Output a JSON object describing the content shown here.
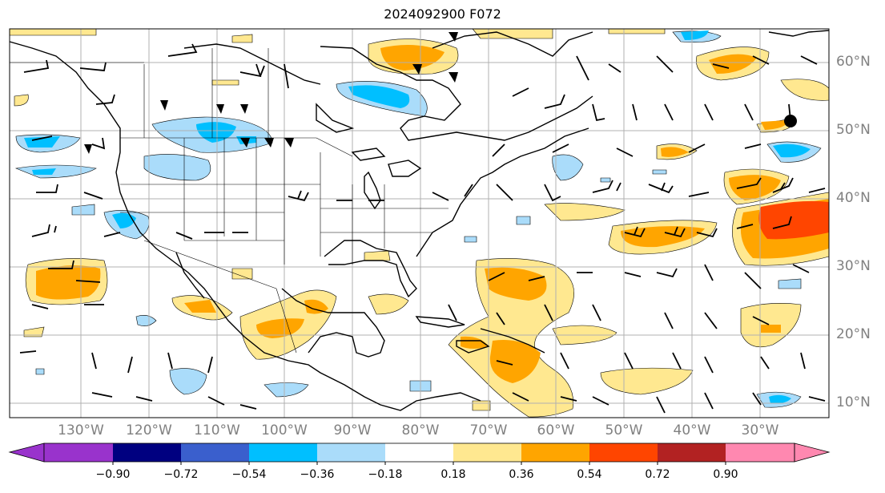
{
  "title": "2024092900 F072",
  "longitude_labels": [
    "130°W",
    "120°W",
    "110°W",
    "100°W",
    "90°W",
    "80°W",
    "70°W",
    "60°W",
    "50°W",
    "40°W",
    "30°W"
  ],
  "latitude_labels": [
    "60°N",
    "50°N",
    "40°N",
    "30°N",
    "20°N",
    "10°N"
  ],
  "colorbar": {
    "tick_labels": [
      "−0.90",
      "−0.72",
      "−0.54",
      "−0.36",
      "−0.18",
      "0.18",
      "0.36",
      "0.54",
      "0.72",
      "0.90"
    ],
    "colors": [
      "#9933cc",
      "#000080",
      "#3a5fcd",
      "#00bfff",
      "#aadcfa",
      "#ffffff",
      "#ffe890",
      "#ffa500",
      "#ff4500",
      "#b22222",
      "#ff88b0"
    ]
  },
  "map_colors": {
    "low": "#aadcfa",
    "mid_low": "#00bfff",
    "mid_high": "#ffa500",
    "high": "#ff4500",
    "light_pos": "#ffe890"
  },
  "marker": {
    "label": "",
    "lon": -26,
    "lat": 51
  }
}
